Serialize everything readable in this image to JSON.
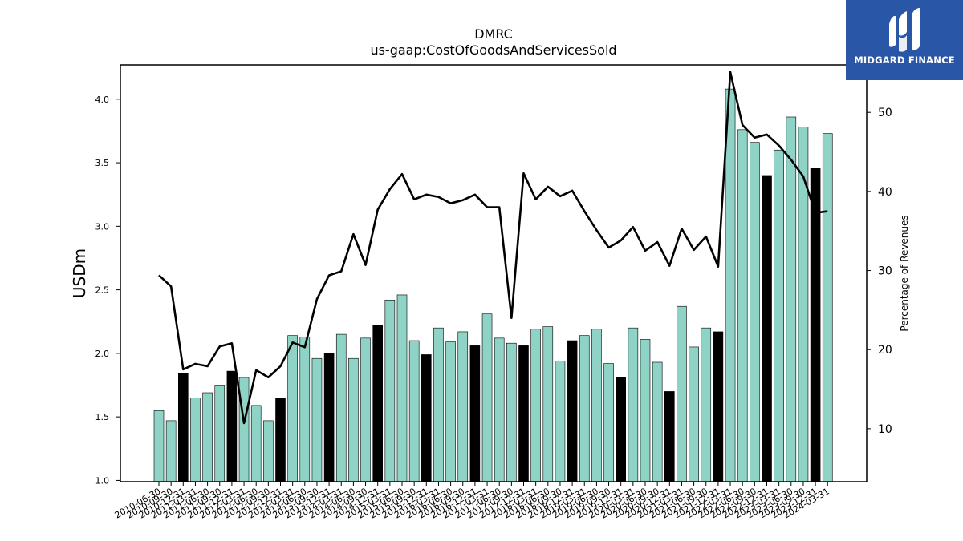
{
  "chart_data": {
    "type": "bar",
    "title": "DMRC",
    "subtitle": "us-gaap:CostOfGoodsAndServicesSold",
    "ylabel": "USDm",
    "ylabel_right": "Percentage of Revenues",
    "ylim": [
      0.99,
      4.27
    ],
    "ylim_right": [
      3.3,
      56.0
    ],
    "yticks": [
      1.0,
      1.5,
      2.0,
      2.5,
      3.0,
      3.5,
      4.0
    ],
    "yticks_right": [
      10,
      20,
      30,
      40,
      50
    ],
    "colors": {
      "bar": "#8fd3c6",
      "bar_highlight": "#000000",
      "line": "#000000"
    },
    "categories": [
      "2010-06-30",
      "2010-09-30",
      "2010-12-31",
      "2011-03-31",
      "2011-06-30",
      "2011-09-30",
      "2011-12-31",
      "2012-03-31",
      "2012-06-30",
      "2012-09-30",
      "2012-12-31",
      "2013-03-31",
      "2013-06-30",
      "2013-09-30",
      "2013-12-31",
      "2014-03-31",
      "2014-06-30",
      "2014-09-30",
      "2014-12-31",
      "2015-03-31",
      "2015-06-30",
      "2015-09-30",
      "2015-12-31",
      "2016-03-31",
      "2016-06-30",
      "2016-09-30",
      "2016-12-31",
      "2017-03-31",
      "2017-06-30",
      "2017-09-30",
      "2017-12-31",
      "2018-03-31",
      "2018-06-30",
      "2018-09-30",
      "2018-12-31",
      "2019-03-31",
      "2019-06-30",
      "2019-09-30",
      "2019-12-31",
      "2020-03-31",
      "2020-06-30",
      "2020-09-30",
      "2020-12-31",
      "2021-03-31",
      "2021-06-30",
      "2021-09-30",
      "2021-12-31",
      "2022-03-31",
      "2022-06-30",
      "2022-09-30",
      "2022-12-31",
      "2023-03-31",
      "2023-06-30",
      "2023-09-30",
      "2023-12-31",
      "2024-03-31"
    ],
    "series": [
      {
        "values": [
          1.55,
          1.47,
          1.84,
          1.65,
          1.69,
          1.75,
          1.86,
          1.81,
          1.59,
          1.47,
          1.65,
          2.14,
          2.13,
          1.96,
          2.0,
          2.15,
          1.96,
          2.12,
          2.22,
          2.42,
          2.46,
          2.1,
          1.99,
          2.2,
          2.09,
          2.17,
          2.06,
          2.31,
          2.12,
          2.08,
          2.06,
          2.19,
          2.21,
          1.94,
          2.1,
          2.14,
          2.19,
          1.92,
          1.81,
          2.2,
          2.11,
          1.93,
          1.7,
          2.37,
          2.05,
          2.2,
          2.17,
          4.08,
          3.76,
          3.66,
          3.4,
          3.6,
          3.86,
          3.78,
          3.46,
          3.73
        ],
        "highlight": [
          false,
          false,
          true,
          false,
          false,
          false,
          true,
          false,
          false,
          false,
          true,
          false,
          false,
          false,
          true,
          false,
          false,
          false,
          true,
          false,
          false,
          false,
          true,
          false,
          false,
          false,
          true,
          false,
          false,
          false,
          true,
          false,
          false,
          false,
          true,
          false,
          false,
          false,
          true,
          false,
          false,
          false,
          true,
          false,
          false,
          false,
          true,
          false,
          false,
          false,
          true,
          false,
          false,
          false,
          true,
          false
        ]
      },
      {
        "axis": "right",
        "type": "line",
        "values": [
          29.4,
          28.0,
          17.5,
          18.2,
          17.9,
          20.4,
          20.8,
          10.7,
          17.4,
          16.5,
          17.9,
          20.9,
          20.3,
          26.4,
          29.4,
          29.9,
          34.6,
          30.7,
          37.7,
          40.3,
          42.2,
          39.0,
          39.6,
          39.3,
          38.5,
          38.9,
          39.6,
          38.0,
          38.0,
          24.0,
          42.3,
          39.0,
          40.6,
          39.4,
          40.1,
          37.5,
          35.1,
          32.9,
          33.8,
          35.5,
          32.5,
          33.6,
          30.6,
          35.3,
          32.6,
          34.3,
          30.5,
          55.1,
          48.4,
          46.8,
          47.2,
          45.8,
          44.0,
          41.9,
          37.3,
          37.5
        ]
      }
    ]
  },
  "logo": {
    "text": "MIDGARD FINANCE"
  }
}
